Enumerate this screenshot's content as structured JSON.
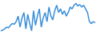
{
  "chart_data": {
    "type": "line",
    "categories": [
      null,
      null,
      null,
      null,
      null,
      null,
      null,
      null,
      null,
      null,
      null,
      null,
      null,
      null,
      null,
      null,
      null,
      null,
      null,
      null,
      null,
      null,
      null,
      null,
      null,
      null,
      null,
      null,
      null,
      null,
      null,
      null,
      null,
      null,
      null,
      null,
      null,
      null,
      null,
      null,
      null,
      null,
      null,
      null,
      null,
      null,
      null,
      null,
      null,
      null
    ],
    "values": [
      20,
      22,
      25,
      30,
      28,
      35,
      40,
      38,
      45,
      60,
      30,
      55,
      70,
      25,
      65,
      40,
      20,
      75,
      35,
      60,
      80,
      30,
      55,
      70,
      45,
      85,
      60,
      50,
      75,
      90,
      70,
      80,
      65,
      75,
      60,
      70,
      85,
      80,
      90,
      95,
      88,
      92,
      85,
      90,
      80,
      70,
      45,
      40,
      45,
      42
    ],
    "color": "#3a8fd9",
    "ylim": [
      10,
      100
    ],
    "grid": false,
    "tick_labels": false
  }
}
